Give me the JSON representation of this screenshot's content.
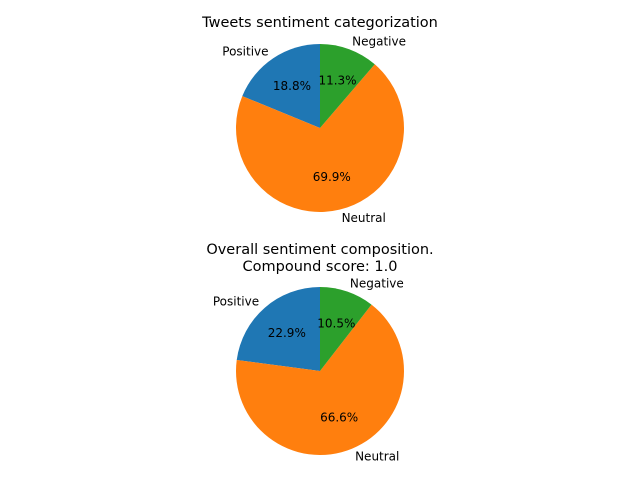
{
  "chart_data": [
    {
      "type": "pie",
      "title": "Tweets sentiment categorization",
      "subtitle": "",
      "start_angle_deg": 90,
      "direction": "counterclockwise",
      "slices": [
        {
          "label": "Positive",
          "percent": 18.8,
          "pct_label": "18.8%",
          "color": "#1f77b4"
        },
        {
          "label": "Neutral",
          "percent": 69.9,
          "pct_label": "69.9%",
          "color": "#ff7f0e"
        },
        {
          "label": "Negative",
          "percent": 11.3,
          "pct_label": "11.3%",
          "color": "#2ca02c"
        }
      ]
    },
    {
      "type": "pie",
      "title": "Overall sentiment composition.",
      "subtitle": "Compound score: 1.0",
      "start_angle_deg": 90,
      "direction": "counterclockwise",
      "slices": [
        {
          "label": "Positive",
          "percent": 22.9,
          "pct_label": "22.9%",
          "color": "#1f77b4"
        },
        {
          "label": "Neutral",
          "percent": 66.6,
          "pct_label": "66.6%",
          "color": "#ff7f0e"
        },
        {
          "label": "Negative",
          "percent": 10.5,
          "pct_label": "10.5%",
          "color": "#2ca02c"
        }
      ]
    }
  ]
}
